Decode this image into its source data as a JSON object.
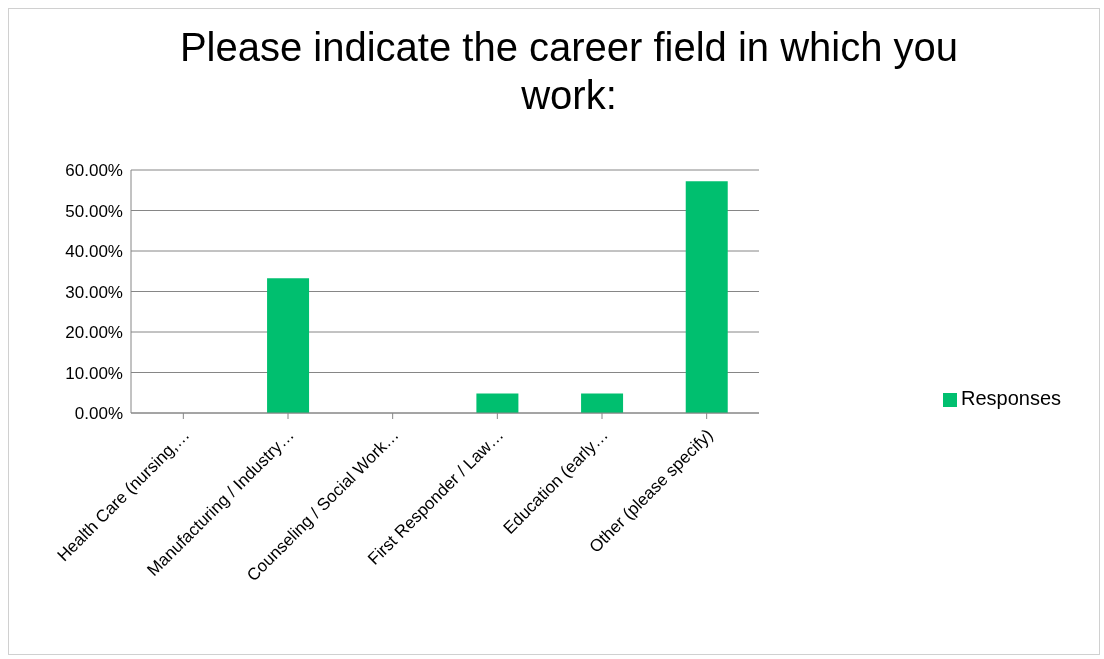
{
  "chart_data": {
    "type": "bar",
    "title": "Please indicate the career field in which you work:",
    "categories": [
      "Health Care (nursing,…",
      "Manufacturing / Industry…",
      "Counseling / Social Work…",
      "First Responder / Law…",
      "Education (early…",
      "Other (please specify)"
    ],
    "series": [
      {
        "name": "Responses",
        "color": "#00bf6f",
        "values": [
          0,
          33.3,
          0,
          4.8,
          4.8,
          57.2
        ]
      }
    ],
    "ylim": [
      0,
      60
    ],
    "yticks": [
      {
        "value": 0,
        "label": "0.00%"
      },
      {
        "value": 10,
        "label": "10.00%"
      },
      {
        "value": 20,
        "label": "20.00%"
      },
      {
        "value": 30,
        "label": "30.00%"
      },
      {
        "value": 40,
        "label": "40.00%"
      },
      {
        "value": 50,
        "label": "50.00%"
      },
      {
        "value": 60,
        "label": "60.00%"
      }
    ],
    "grid": "y",
    "legend": "right"
  }
}
